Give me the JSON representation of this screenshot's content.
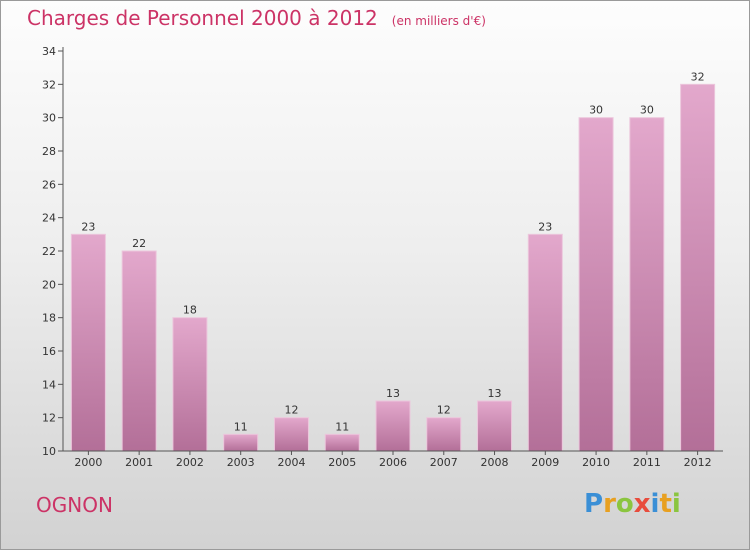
{
  "header": {
    "title": "Charges de Personnel 2000 à 2012",
    "subtitle": "(en milliers d'€)"
  },
  "commune": "OGNON",
  "logo": {
    "letters": [
      "P",
      "r",
      "o",
      "x",
      "i",
      "t",
      "i"
    ],
    "colors": [
      "#3a8fd6",
      "#e8a020",
      "#8bc53f",
      "#e84c3d",
      "#3a8fd6",
      "#e8a020",
      "#8bc53f"
    ]
  },
  "colors": {
    "bar_top": "#e3a8cc",
    "bar_bottom": "#b36f98",
    "title": "#cc3366"
  },
  "chart_data": {
    "type": "bar",
    "categories": [
      "2000",
      "2001",
      "2002",
      "2003",
      "2004",
      "2005",
      "2006",
      "2007",
      "2008",
      "2009",
      "2010",
      "2011",
      "2012"
    ],
    "values": [
      23,
      22,
      18,
      11,
      12,
      11,
      13,
      12,
      13,
      23,
      30,
      30,
      32
    ],
    "ylim": [
      10,
      34
    ],
    "yticks": [
      10,
      12,
      14,
      16,
      18,
      20,
      22,
      24,
      26,
      28,
      30,
      32,
      34
    ],
    "grid": false,
    "legend": "none"
  }
}
